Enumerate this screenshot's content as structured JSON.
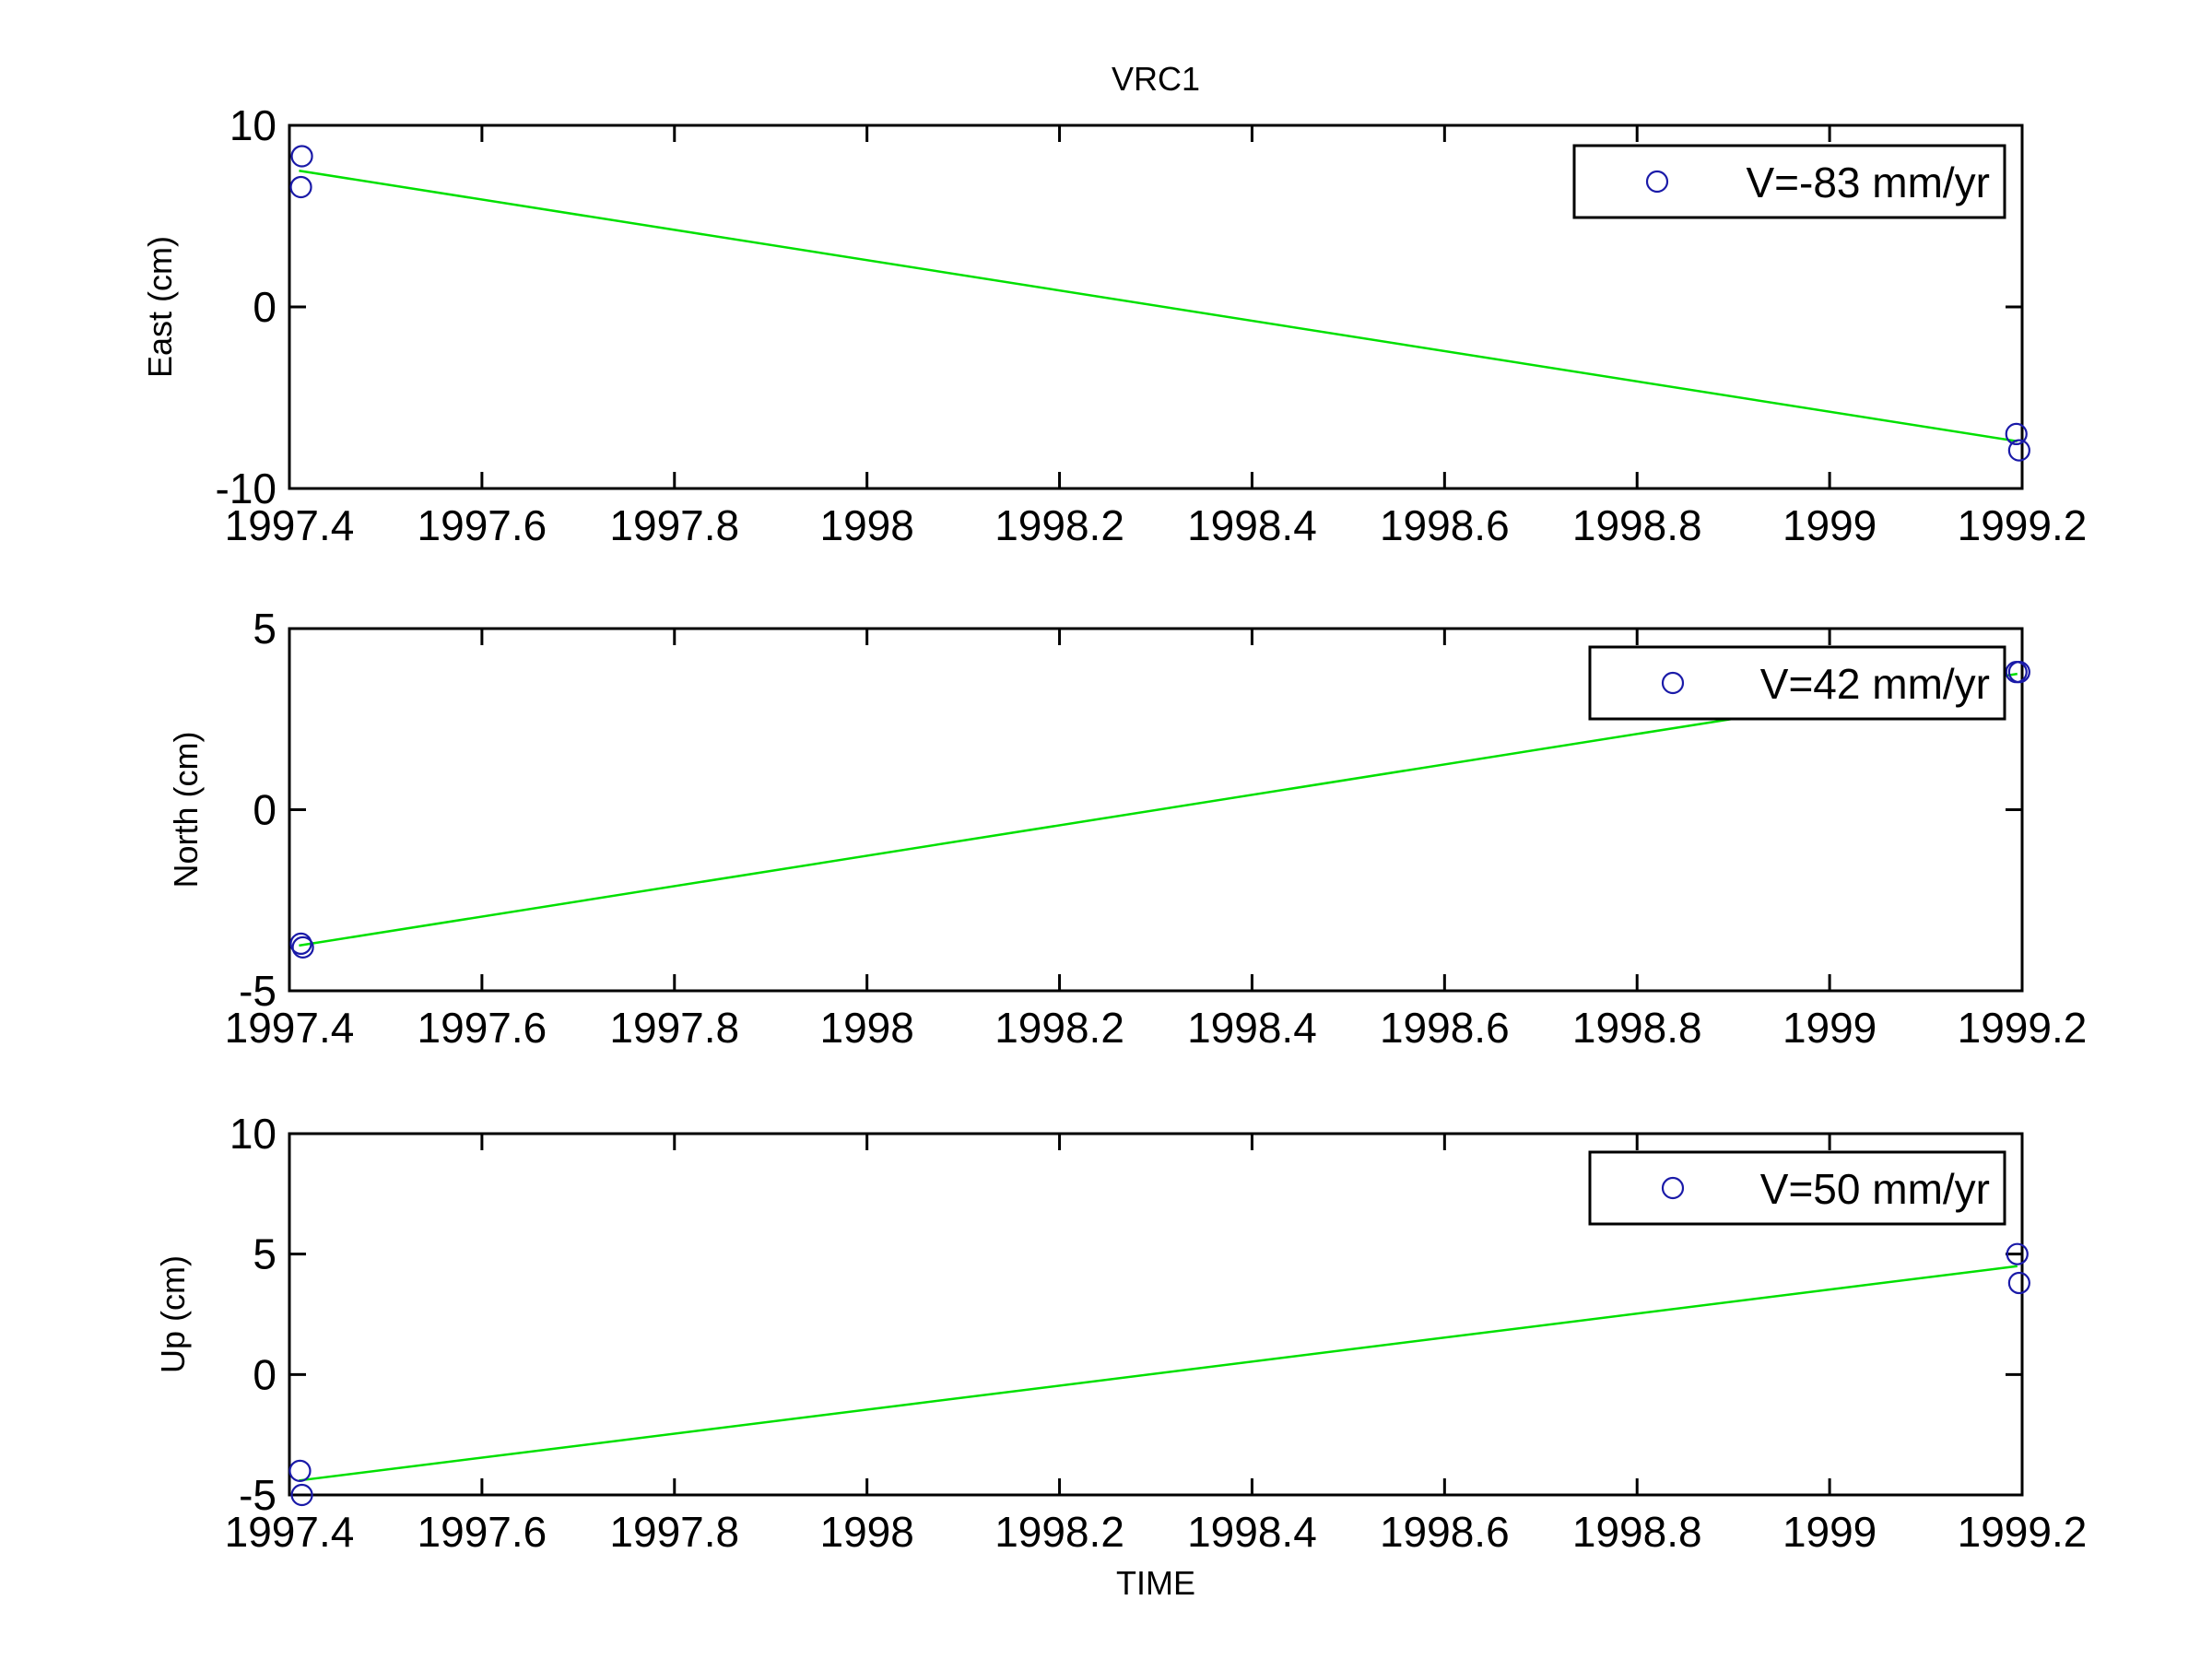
{
  "figure": {
    "title": "VRC1",
    "xlabel": "TIME",
    "colors": {
      "fit_line": "#00e000",
      "markers": "#1a1aa8",
      "axes": "#000000",
      "background": "#ffffff"
    }
  },
  "chart_data": [
    {
      "type": "scatter",
      "title": "VRC1",
      "xlabel": "",
      "ylabel": "East (cm)",
      "xlim": [
        1997.4,
        1999.2
      ],
      "ylim": [
        -10,
        10
      ],
      "xticks": [
        "1997.4",
        "1997.6",
        "1997.8",
        "1998",
        "1998.2",
        "1998.4",
        "1998.6",
        "1998.8",
        "1999",
        "1999.2"
      ],
      "yticks": [
        "-10",
        "0",
        "10"
      ],
      "legend": {
        "position": "top-right",
        "entries": [
          "V=-83 mm/yr"
        ]
      },
      "series": [
        {
          "name": "V=-83 mm/yr",
          "marker": "circle",
          "x": [
            1997.413,
            1997.412,
            1999.194,
            1999.197
          ],
          "y": [
            8.3,
            6.6,
            -7.0,
            -7.9
          ]
        }
      ],
      "fit_line": {
        "x": [
          1997.41,
          1999.195
        ],
        "y": [
          7.5,
          -7.4
        ]
      },
      "grid": false
    },
    {
      "type": "scatter",
      "xlabel": "",
      "ylabel": "North (cm)",
      "xlim": [
        1997.4,
        1999.2
      ],
      "ylim": [
        -5,
        5
      ],
      "xticks": [
        "1997.4",
        "1997.6",
        "1997.8",
        "1998",
        "1998.2",
        "1998.4",
        "1998.6",
        "1998.8",
        "1999",
        "1999.2"
      ],
      "yticks": [
        "-5",
        "0",
        "5"
      ],
      "legend": {
        "position": "top-right",
        "entries": [
          "V=42 mm/yr"
        ]
      },
      "series": [
        {
          "name": "V=42 mm/yr",
          "marker": "circle",
          "x": [
            1997.412,
            1997.414,
            1999.194,
            1999.197
          ],
          "y": [
            -3.7,
            -3.8,
            3.8,
            3.8
          ]
        }
      ],
      "fit_line": {
        "x": [
          1997.41,
          1999.195
        ],
        "y": [
          -3.75,
          3.75
        ]
      },
      "grid": false
    },
    {
      "type": "scatter",
      "xlabel": "TIME",
      "ylabel": "Up (cm)",
      "xlim": [
        1997.4,
        1999.2
      ],
      "ylim": [
        -5,
        10
      ],
      "xticks": [
        "1997.4",
        "1997.6",
        "1997.8",
        "1998",
        "1998.2",
        "1998.4",
        "1998.6",
        "1998.8",
        "1999",
        "1999.2"
      ],
      "yticks": [
        "-5",
        "0",
        "5",
        "10"
      ],
      "legend": {
        "position": "top-right",
        "entries": [
          "V=50 mm/yr"
        ]
      },
      "series": [
        {
          "name": "V=50 mm/yr",
          "marker": "circle",
          "x": [
            1997.411,
            1997.413,
            1999.195,
            1999.197
          ],
          "y": [
            -4.0,
            -5.0,
            5.0,
            3.8
          ]
        }
      ],
      "fit_line": {
        "x": [
          1997.41,
          1999.195
        ],
        "y": [
          -4.4,
          4.5
        ]
      },
      "grid": false
    }
  ]
}
